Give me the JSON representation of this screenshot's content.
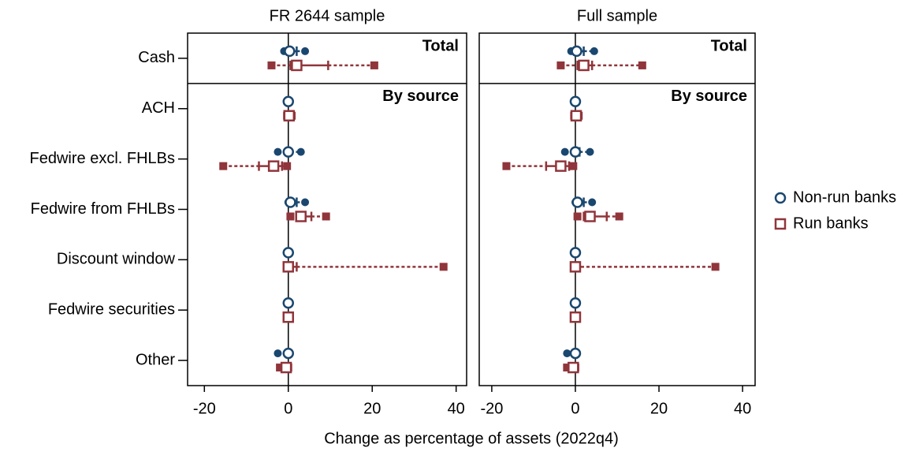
{
  "chart_data": [
    {
      "type": "range",
      "title": "FR 2644 sample",
      "categories": [
        "Cash",
        "ACH",
        "Fedwire excl. FHLBs",
        "Fedwire from FHLBs",
        "Discount window",
        "Fedwire securities",
        "Other"
      ],
      "section_labels": [
        "Total",
        "By source"
      ],
      "xlim": [
        -24,
        42.5
      ],
      "xticks": [
        -20,
        0,
        20,
        40
      ],
      "series": [
        {
          "name": "Non-run banks",
          "color": "#1a476f",
          "marker": "circle",
          "values": [
            {
              "p10": -1,
              "p25": -0.3,
              "median": 0.3,
              "p75": 2,
              "p90": 4
            },
            {
              "p10": -0.2,
              "p25": 0,
              "median": 0,
              "p75": 0,
              "p90": 0.3
            },
            {
              "p10": -2.5,
              "p25": -0.5,
              "median": 0,
              "p75": 0.5,
              "p90": 3
            },
            {
              "p10": 0,
              "p25": 0.2,
              "median": 0.5,
              "p75": 2,
              "p90": 4
            },
            {
              "p10": 0,
              "p25": 0,
              "median": 0,
              "p75": 0,
              "p90": 0
            },
            {
              "p10": 0,
              "p25": 0,
              "median": 0,
              "p75": 0,
              "p90": 0
            },
            {
              "p10": -2.5,
              "p25": -0.5,
              "median": 0,
              "p75": 0,
              "p90": 0
            }
          ]
        },
        {
          "name": "Run banks",
          "color": "#90353b",
          "marker": "square",
          "values": [
            {
              "p10": -4,
              "p25": 0.5,
              "median": 2,
              "p75": 9.5,
              "p90": 20.5
            },
            {
              "p10": -0.3,
              "p25": 0,
              "median": 0.2,
              "p75": 0.5,
              "p90": 0.8
            },
            {
              "p10": -15.5,
              "p25": -7,
              "median": -3.5,
              "p75": -1.5,
              "p90": -0.3
            },
            {
              "p10": 0.5,
              "p25": 2,
              "median": 3,
              "p75": 5.5,
              "p90": 9
            },
            {
              "p10": 0,
              "p25": 0,
              "median": 0,
              "p75": 2,
              "p90": 37
            },
            {
              "p10": 0,
              "p25": 0,
              "median": 0,
              "p75": 0,
              "p90": 0
            },
            {
              "p10": -2,
              "p25": -0.5,
              "median": -0.5,
              "p75": 0,
              "p90": 0
            }
          ]
        }
      ]
    },
    {
      "type": "range",
      "title": "Full sample",
      "section_labels": [
        "Total",
        "By source"
      ],
      "xlim": [
        -23,
        43
      ],
      "xticks": [
        -20,
        0,
        20,
        40
      ],
      "series": [
        {
          "name": "Non-run banks",
          "color": "#1a476f",
          "marker": "circle",
          "values": [
            {
              "p10": -1,
              "p25": -0.3,
              "median": 0.3,
              "p75": 2,
              "p90": 4.5
            },
            {
              "p10": -0.2,
              "p25": 0,
              "median": 0,
              "p75": 0,
              "p90": 0.3
            },
            {
              "p10": -2.5,
              "p25": -0.5,
              "median": 0,
              "p75": 1,
              "p90": 3.5
            },
            {
              "p10": 0,
              "p25": 0.2,
              "median": 0.5,
              "p75": 2,
              "p90": 4
            },
            {
              "p10": 0,
              "p25": 0,
              "median": 0,
              "p75": 0,
              "p90": 0
            },
            {
              "p10": 0,
              "p25": 0,
              "median": 0,
              "p75": 0,
              "p90": 0
            },
            {
              "p10": -2,
              "p25": -0.3,
              "median": 0,
              "p75": 0,
              "p90": 0
            }
          ]
        },
        {
          "name": "Run banks",
          "color": "#90353b",
          "marker": "square",
          "values": [
            {
              "p10": -3.5,
              "p25": 0.5,
              "median": 2,
              "p75": 4,
              "p90": 16
            },
            {
              "p10": -0.3,
              "p25": 0,
              "median": 0.2,
              "p75": 0.5,
              "p90": 0.8
            },
            {
              "p10": -16.5,
              "p25": -7,
              "median": -3.5,
              "p75": -1.5,
              "p90": -0.5
            },
            {
              "p10": 0.5,
              "p25": 2,
              "median": 3.5,
              "p75": 7.5,
              "p90": 10.5
            },
            {
              "p10": 0,
              "p25": 0,
              "median": 0,
              "p75": 0,
              "p90": 33.5
            },
            {
              "p10": 0,
              "p25": 0,
              "median": 0,
              "p75": 0,
              "p90": 0
            },
            {
              "p10": -2,
              "p25": -0.5,
              "median": -0.5,
              "p75": 0,
              "p90": 0
            }
          ]
        }
      ]
    }
  ],
  "x_label": "Change as percentage of assets (2022q4)"
}
